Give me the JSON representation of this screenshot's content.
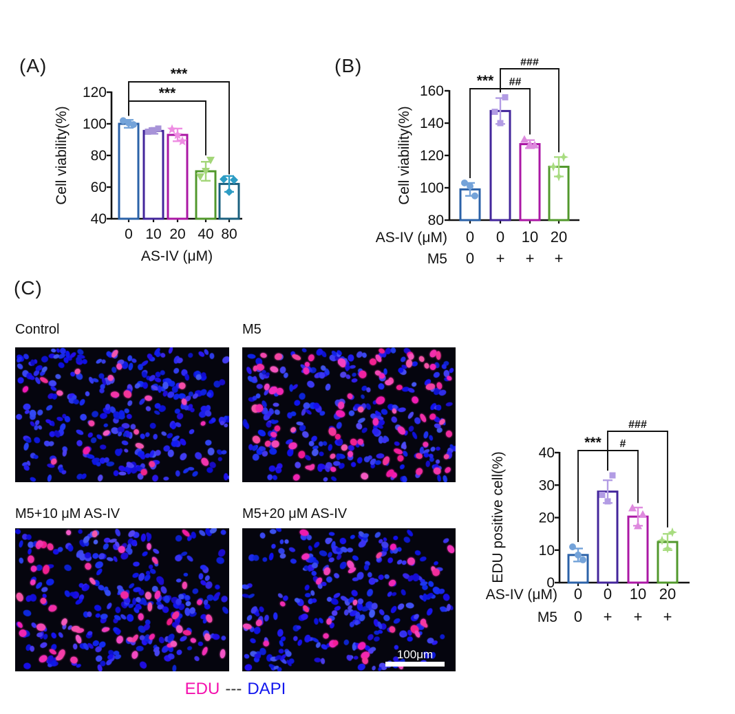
{
  "panels": {
    "a": {
      "label": "(A)"
    },
    "b": {
      "label": "(B)"
    },
    "c": {
      "label": "(C)"
    }
  },
  "chart_data": [
    {
      "id": "A",
      "type": "bar",
      "title": "",
      "ylabel": "Cell viability(%)",
      "xlabel": "AS-IV (μM)",
      "categories": [
        "0",
        "10",
        "20",
        "40",
        "80"
      ],
      "values": [
        100,
        95.5,
        93,
        70,
        62
      ],
      "errors": [
        2.5,
        1.8,
        4,
        6,
        5
      ],
      "points": [
        [
          102,
          99.5,
          100.5
        ],
        [
          97,
          95,
          96
        ],
        [
          96.5,
          89,
          93
        ],
        [
          77,
          66.5,
          70
        ],
        [
          65,
          64.5,
          57
        ]
      ],
      "ylim": [
        40,
        120
      ],
      "yticks": [
        40,
        60,
        80,
        100,
        120
      ],
      "bar_colors": [
        "#2b62a8",
        "#43269b",
        "#ab18a5",
        "#52982c",
        "#1b607f"
      ],
      "marker_colors": [
        "#74a3d9",
        "#a793d8",
        "#ee8ce2",
        "#a3d678",
        "#2c9cc4"
      ],
      "marker_shapes": [
        "circle",
        "square",
        "star5",
        "triangle-down",
        "diamond"
      ],
      "significance": [
        {
          "from": 0,
          "to": 3,
          "label": "***",
          "level": 0
        },
        {
          "from": 0,
          "to": 4,
          "label": "***",
          "level": 1
        }
      ]
    },
    {
      "id": "B",
      "type": "bar",
      "title": "",
      "ylabel": "Cell viability(%)",
      "x_rows": [
        {
          "label": "AS-IV (μM)",
          "values": [
            "0",
            "0",
            "10",
            "20"
          ]
        },
        {
          "label": "M5",
          "values": [
            "0",
            "+",
            "+",
            "+"
          ]
        }
      ],
      "values": [
        99,
        147.5,
        127,
        113
      ],
      "errors": [
        4,
        8,
        2.5,
        6
      ],
      "points": [
        [
          103,
          95,
          101
        ],
        [
          156,
          147,
          140
        ],
        [
          130,
          126.5,
          127
        ],
        [
          119,
          113,
          107
        ]
      ],
      "ylim": [
        80,
        160
      ],
      "yticks": [
        80,
        100,
        120,
        140,
        160
      ],
      "bar_colors": [
        "#2b62a8",
        "#43269b",
        "#ab18a5",
        "#52982c"
      ],
      "marker_colors": [
        "#74a3d9",
        "#b29ce4",
        "#de8ade",
        "#a8dc80"
      ],
      "marker_shapes": [
        "circle",
        "square",
        "triangle-up",
        "star4"
      ],
      "significance": [
        {
          "from": 0,
          "to": 1,
          "label": "***",
          "level": 0
        },
        {
          "from": 1,
          "to": 2,
          "label": "##",
          "level": 0
        },
        {
          "from": 1,
          "to": 3,
          "label": "###",
          "level": 1
        }
      ]
    },
    {
      "id": "C",
      "type": "bar",
      "title": "",
      "ylabel": "EDU positive cell(%)",
      "x_rows": [
        {
          "label": "AS-IV (μM)",
          "values": [
            "0",
            "0",
            "10",
            "20"
          ]
        },
        {
          "label": "M5",
          "values": [
            "0",
            "+",
            "+",
            "+"
          ]
        }
      ],
      "values": [
        8.5,
        28,
        20.3,
        12.5
      ],
      "errors": [
        2,
        3.5,
        2.8,
        2.5
      ],
      "points": [
        [
          11,
          7,
          8.5
        ],
        [
          33,
          27,
          25
        ],
        [
          23,
          21,
          17.5
        ],
        [
          15.5,
          13,
          10.5
        ]
      ],
      "ylim": [
        0,
        40
      ],
      "yticks": [
        0,
        10,
        20,
        30,
        40
      ],
      "bar_colors": [
        "#2b62a8",
        "#43269b",
        "#ab18a5",
        "#52982c"
      ],
      "marker_colors": [
        "#74a3d9",
        "#b29ce4",
        "#de8ade",
        "#a8dc80"
      ],
      "marker_shapes": [
        "circle",
        "square",
        "triangle-up",
        "star4"
      ],
      "significance": [
        {
          "from": 0,
          "to": 1,
          "label": "***",
          "level": 0
        },
        {
          "from": 1,
          "to": 2,
          "label": "#",
          "level": 0
        },
        {
          "from": 1,
          "to": 3,
          "label": "###",
          "level": 1
        }
      ]
    }
  ],
  "microscopy": {
    "images": [
      {
        "label": "Control",
        "blue_cells": 250,
        "edu_cells": 22,
        "seed": 7
      },
      {
        "label": "M5",
        "blue_cells": 215,
        "edu_cells": 80,
        "seed": 13
      },
      {
        "label": "M5+10 μM AS-IV",
        "blue_cells": 230,
        "edu_cells": 55,
        "seed": 21
      },
      {
        "label": "M5+20 μM AS-IV",
        "blue_cells": 225,
        "edu_cells": 32,
        "seed": 42
      }
    ],
    "scale_bar": {
      "label": "100μm"
    },
    "stain_colors": {
      "edu": "#ee1f9f",
      "dapi": "#2431e2",
      "background": "#05050e"
    }
  },
  "caption": {
    "edu": "EDU",
    "separator": "---",
    "dapi": "DAPI",
    "edu_color": "#f411ad",
    "separator_color": "#333333",
    "dapi_color": "#1216ee"
  }
}
